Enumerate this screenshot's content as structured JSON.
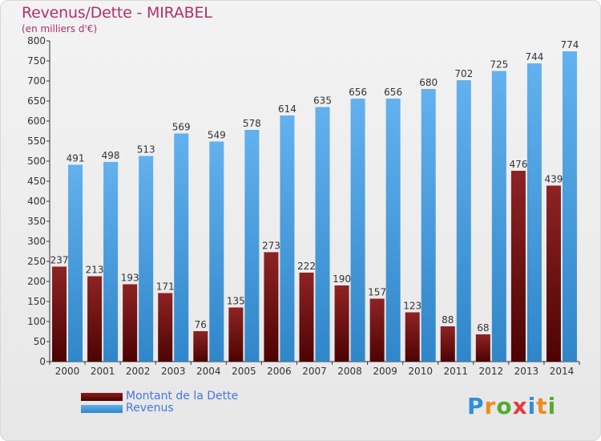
{
  "header": {
    "title": "Revenus/Dette - MIRABEL",
    "subtitle": "(en milliers d'€)"
  },
  "legend": {
    "items": [
      {
        "label": "Montant de la Dette",
        "color": "#7a1010"
      },
      {
        "label": "Revenus",
        "color": "#3f98dc"
      }
    ]
  },
  "logo": {
    "text": "Proxiti",
    "colors": [
      "#2f8fd8",
      "#f08a1c",
      "#55aa33",
      "#e23c3c",
      "#2f8fd8",
      "#f08a1c",
      "#55aa33"
    ]
  },
  "chart_data": {
    "type": "bar",
    "title": "Revenus/Dette - MIRABEL",
    "ylabel": "(en milliers d'€)",
    "xlabel": "",
    "categories": [
      "2000",
      "2001",
      "2002",
      "2003",
      "2004",
      "2005",
      "2006",
      "2007",
      "2008",
      "2009",
      "2010",
      "2011",
      "2012",
      "2013",
      "2014"
    ],
    "series": [
      {
        "name": "Montant de la Dette",
        "color": "#7a1010",
        "values": [
          237,
          213,
          193,
          171,
          76,
          135,
          273,
          222,
          190,
          157,
          123,
          88,
          68,
          476,
          439
        ]
      },
      {
        "name": "Revenus",
        "color": "#3f98dc",
        "values": [
          491,
          498,
          513,
          569,
          549,
          578,
          614,
          635,
          656,
          656,
          680,
          702,
          725,
          744,
          774
        ]
      }
    ],
    "yticks": [
      0,
      50,
      100,
      150,
      200,
      250,
      300,
      350,
      400,
      450,
      500,
      550,
      600,
      650,
      700,
      750,
      800
    ],
    "ylim": [
      0,
      800
    ],
    "grid": false,
    "legend_position": "bottom-left"
  }
}
